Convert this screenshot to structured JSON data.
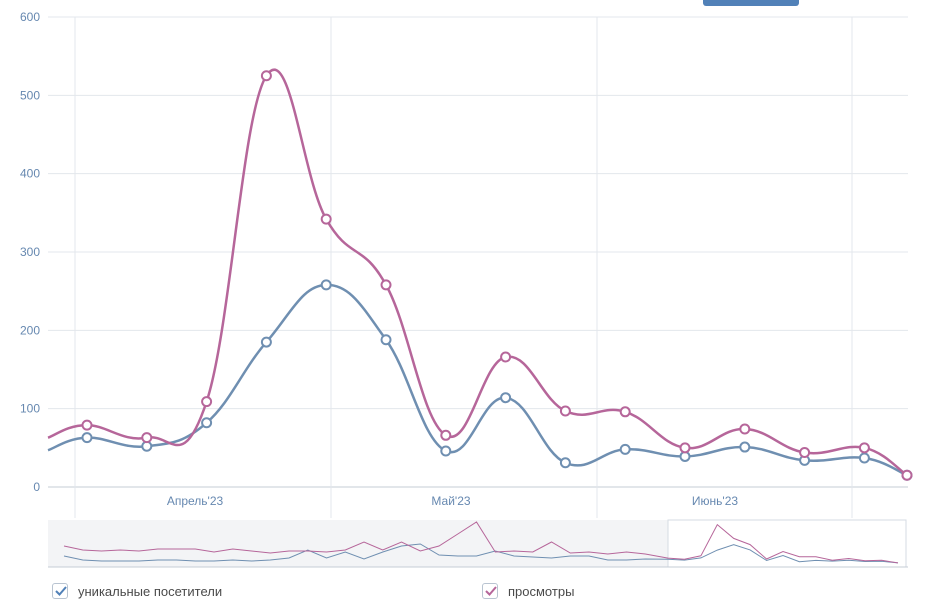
{
  "chart_data": {
    "type": "line",
    "x_labels": [
      "Апрель'23",
      "Май'23",
      "Июнь'23"
    ],
    "y_ticks": [
      0,
      100,
      200,
      300,
      400,
      500,
      600
    ],
    "ylim": [
      0,
      600
    ],
    "grid": true,
    "legend_placement": "bottom",
    "series": [
      {
        "name": "уникальные посетители",
        "color": "#6f8fb1",
        "values": [
          63,
          52,
          82,
          185,
          258,
          188,
          46,
          114,
          31,
          48,
          39,
          51,
          34,
          37,
          15
        ]
      },
      {
        "name": "просмотры",
        "color": "#b6669a",
        "values": [
          79,
          63,
          109,
          525,
          342,
          258,
          66,
          166,
          97,
          96,
          50,
          74,
          44,
          50,
          15
        ]
      }
    ]
  },
  "legend": {
    "item1": "уникальные посетители",
    "item2": "просмотры"
  },
  "colors": {
    "axis_text": "#6688b0",
    "grid": "#e3e7ec",
    "navigator_bg": "#f3f4f6",
    "checkbox_blue": "#5181b8",
    "checkbox_pink": "#b6669a"
  }
}
